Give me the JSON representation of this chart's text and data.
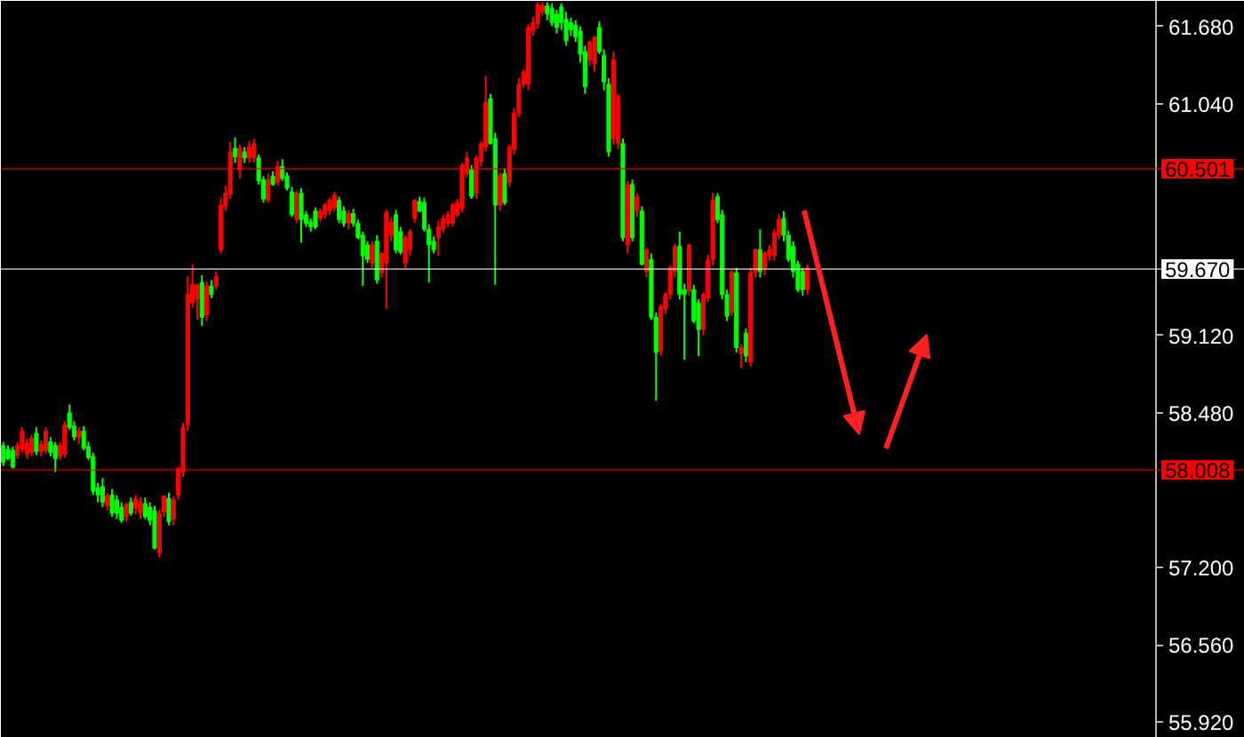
{
  "chart_data": {
    "type": "candlestick",
    "categories": [
      null,
      null,
      null,
      null,
      null,
      null,
      null,
      null,
      null,
      null,
      null,
      null,
      null,
      null,
      null,
      null,
      null,
      null,
      null,
      null,
      null,
      null,
      null,
      null,
      null,
      null,
      null,
      null,
      null,
      null,
      null,
      null,
      null,
      null,
      null,
      null,
      null,
      null,
      null,
      null,
      null,
      null,
      null,
      null,
      null,
      null,
      null,
      null,
      null,
      null,
      null,
      null,
      null,
      null,
      null,
      null,
      null,
      null,
      null,
      null,
      null,
      null,
      null,
      null,
      null,
      null,
      null,
      null,
      null,
      null,
      null,
      null,
      null,
      null,
      null,
      null,
      null,
      null,
      null,
      null,
      null,
      null,
      null,
      null,
      null,
      null,
      null,
      null,
      null,
      null,
      null,
      null,
      null,
      null,
      null,
      null,
      null,
      null,
      null,
      null,
      null,
      null,
      null,
      null,
      null,
      null,
      null,
      null,
      null,
      null,
      null,
      null,
      null,
      null,
      null,
      null,
      null,
      null,
      null,
      null,
      null,
      null,
      null,
      null,
      null,
      null,
      null,
      null,
      null,
      null,
      null,
      null,
      null,
      null,
      null,
      null,
      null,
      null,
      null,
      null,
      null,
      null,
      null,
      null,
      null,
      null,
      null,
      null,
      null,
      null,
      null,
      null,
      null,
      null,
      null,
      null,
      null,
      null,
      null,
      null,
      null,
      null,
      null,
      null,
      null,
      null,
      null,
      null,
      null,
      null,
      null,
      null,
      null,
      null,
      null,
      null,
      null,
      null,
      null,
      null,
      null,
      null,
      null,
      null,
      null,
      null,
      null,
      null,
      null,
      null,
      null,
      null,
      null,
      null,
      null,
      null,
      null,
      null,
      null,
      null,
      null,
      null,
      null,
      null,
      null,
      null,
      null,
      null,
      null,
      null,
      null,
      null,
      null,
      null,
      null,
      null,
      null,
      null,
      null,
      null,
      null,
      null,
      null,
      null,
      null,
      null,
      null,
      null,
      null,
      null,
      null,
      null,
      null,
      null,
      null,
      null,
      null,
      null,
      null,
      null,
      null,
      null,
      null,
      null,
      null,
      null,
      null,
      null,
      null,
      null,
      null,
      null,
      null,
      null,
      null,
      null,
      null,
      null,
      null,
      null,
      null,
      null,
      null
    ],
    "ohlc": [
      [
        58.21,
        58.24,
        58.04,
        58.07
      ],
      [
        58.18,
        58.21,
        58.09,
        58.1
      ],
      [
        58.17,
        58.2,
        58.02,
        58.03
      ],
      [
        58.13,
        58.24,
        58.1,
        58.21
      ],
      [
        58.18,
        58.36,
        58.15,
        58.33
      ],
      [
        58.14,
        58.27,
        58.1,
        58.23
      ],
      [
        58.15,
        58.3,
        58.12,
        58.27
      ],
      [
        58.31,
        58.36,
        58.13,
        58.16
      ],
      [
        58.16,
        58.25,
        58.12,
        58.22
      ],
      [
        58.17,
        58.36,
        58.14,
        58.33
      ],
      [
        58.24,
        58.28,
        58.12,
        58.15
      ],
      [
        58.21,
        58.24,
        57.99,
        58.1
      ],
      [
        58.12,
        58.24,
        58.09,
        58.21
      ],
      [
        58.14,
        58.41,
        58.11,
        58.38
      ],
      [
        58.48,
        58.55,
        58.34,
        58.36
      ],
      [
        58.37,
        58.41,
        58.25,
        58.28
      ],
      [
        58.28,
        58.36,
        58.22,
        58.33
      ],
      [
        58.33,
        58.37,
        58.17,
        58.19
      ],
      [
        58.2,
        58.24,
        58.09,
        58.11
      ],
      [
        58.12,
        58.15,
        57.8,
        57.83
      ],
      [
        57.86,
        57.9,
        57.74,
        57.8
      ],
      [
        57.87,
        57.94,
        57.7,
        57.74
      ],
      [
        57.71,
        57.82,
        57.67,
        57.79
      ],
      [
        57.8,
        57.85,
        57.62,
        57.65
      ],
      [
        57.76,
        57.8,
        57.6,
        57.65
      ],
      [
        57.7,
        57.74,
        57.57,
        57.59
      ],
      [
        57.62,
        57.74,
        57.58,
        57.72
      ],
      [
        57.74,
        57.78,
        57.63,
        57.65
      ],
      [
        57.69,
        57.8,
        57.64,
        57.77
      ],
      [
        57.65,
        57.78,
        57.6,
        57.74
      ],
      [
        57.73,
        57.78,
        57.6,
        57.62
      ],
      [
        57.7,
        57.74,
        57.55,
        57.59
      ],
      [
        57.67,
        57.71,
        57.35,
        57.36
      ],
      [
        57.32,
        57.68,
        57.28,
        57.65
      ],
      [
        57.66,
        57.8,
        57.62,
        57.79
      ],
      [
        57.77,
        57.82,
        57.55,
        57.58
      ],
      [
        57.6,
        57.79,
        57.55,
        57.76
      ],
      [
        57.8,
        58.03,
        57.76,
        58.02
      ],
      [
        57.99,
        58.4,
        57.95,
        58.36
      ],
      [
        58.38,
        59.61,
        58.33,
        59.46
      ],
      [
        59.39,
        59.71,
        59.35,
        59.54
      ],
      [
        59.42,
        59.55,
        59.25,
        59.54
      ],
      [
        59.56,
        59.62,
        59.2,
        59.27
      ],
      [
        59.29,
        59.57,
        59.24,
        59.53
      ],
      [
        59.53,
        59.58,
        59.43,
        59.46
      ],
      [
        59.53,
        59.65,
        59.5,
        59.61
      ],
      [
        59.83,
        60.26,
        59.8,
        60.2
      ],
      [
        60.19,
        60.36,
        60.15,
        60.3
      ],
      [
        60.29,
        60.72,
        60.25,
        60.64
      ],
      [
        60.67,
        60.76,
        60.55,
        60.6
      ],
      [
        60.49,
        60.7,
        60.42,
        60.67
      ],
      [
        60.64,
        60.68,
        60.55,
        60.59
      ],
      [
        60.59,
        60.73,
        60.55,
        60.68
      ],
      [
        60.59,
        60.75,
        60.55,
        60.71
      ],
      [
        60.59,
        60.62,
        60.37,
        60.4
      ],
      [
        60.41,
        60.44,
        60.22,
        60.25
      ],
      [
        60.24,
        60.46,
        60.22,
        60.41
      ],
      [
        60.44,
        60.48,
        60.36,
        60.37
      ],
      [
        60.39,
        60.57,
        60.36,
        60.52
      ],
      [
        60.52,
        60.58,
        60.4,
        60.42
      ],
      [
        60.44,
        60.47,
        60.32,
        60.34
      ],
      [
        60.31,
        60.35,
        60.1,
        60.12
      ],
      [
        60.08,
        60.32,
        60.05,
        60.3
      ],
      [
        60.3,
        60.34,
        59.89,
        60.08
      ],
      [
        60.12,
        60.15,
        60.02,
        60.05
      ],
      [
        60.06,
        60.09,
        59.98,
        60.02
      ],
      [
        60.15,
        60.18,
        60.0,
        60.02
      ],
      [
        60.09,
        60.17,
        60.06,
        60.15
      ],
      [
        60.12,
        60.22,
        60.09,
        60.2
      ],
      [
        60.15,
        60.26,
        60.12,
        60.24
      ],
      [
        60.18,
        60.31,
        60.15,
        60.28
      ],
      [
        60.24,
        60.27,
        60.05,
        60.08
      ],
      [
        60.15,
        60.19,
        60.02,
        60.05
      ],
      [
        60.05,
        60.16,
        60.0,
        60.13
      ],
      [
        60.13,
        60.17,
        60.02,
        60.05
      ],
      [
        60.05,
        60.08,
        59.92,
        59.93
      ],
      [
        59.95,
        59.98,
        59.53,
        59.78
      ],
      [
        59.87,
        59.9,
        59.72,
        59.75
      ],
      [
        59.72,
        59.9,
        59.68,
        59.87
      ],
      [
        59.9,
        59.95,
        59.55,
        59.58
      ],
      [
        59.64,
        59.81,
        59.6,
        59.8
      ],
      [
        59.72,
        60.16,
        59.34,
        60.14
      ],
      [
        59.95,
        60.1,
        59.9,
        60.06
      ],
      [
        60.12,
        60.16,
        59.8,
        59.83
      ],
      [
        59.98,
        60.02,
        59.79,
        59.81
      ],
      [
        59.72,
        59.95,
        59.68,
        59.93
      ],
      [
        59.83,
        60.0,
        59.78,
        59.98
      ],
      [
        60.09,
        60.25,
        60.05,
        60.24
      ],
      [
        60.23,
        60.27,
        60.14,
        60.15
      ],
      [
        60.22,
        60.26,
        59.98,
        60.0
      ],
      [
        60.0,
        60.04,
        59.56,
        59.87
      ],
      [
        59.9,
        59.94,
        59.8,
        59.83
      ],
      [
        59.93,
        60.07,
        59.78,
        60.02
      ],
      [
        60.0,
        60.12,
        59.97,
        60.09
      ],
      [
        60.05,
        60.15,
        60.02,
        60.12
      ],
      [
        60.05,
        60.22,
        60.02,
        60.2
      ],
      [
        60.12,
        60.25,
        60.1,
        60.22
      ],
      [
        60.17,
        60.55,
        60.14,
        60.53
      ],
      [
        60.46,
        60.64,
        60.43,
        60.59
      ],
      [
        60.49,
        60.53,
        60.25,
        60.27
      ],
      [
        60.3,
        60.61,
        60.25,
        60.59
      ],
      [
        60.56,
        60.73,
        60.52,
        60.71
      ],
      [
        60.68,
        61.27,
        60.64,
        61.05
      ],
      [
        61.08,
        61.12,
        60.7,
        60.71
      ],
      [
        60.75,
        60.8,
        59.54,
        60.2
      ],
      [
        60.2,
        60.47,
        60.15,
        60.45
      ],
      [
        60.46,
        60.5,
        60.2,
        60.22
      ],
      [
        60.39,
        60.7,
        60.35,
        60.68
      ],
      [
        60.66,
        61.0,
        60.62,
        60.96
      ],
      [
        60.96,
        61.25,
        60.93,
        61.2
      ],
      [
        61.2,
        61.32,
        61.17,
        61.3
      ],
      [
        61.2,
        61.7,
        61.15,
        61.67
      ],
      [
        61.64,
        61.76,
        61.6,
        61.71
      ],
      [
        61.7,
        61.88,
        61.66,
        61.86
      ],
      [
        61.8,
        61.88,
        61.77,
        61.85
      ],
      [
        61.85,
        61.88,
        61.73,
        61.78
      ],
      [
        61.83,
        61.87,
        61.68,
        61.71
      ],
      [
        61.78,
        61.82,
        61.62,
        61.67
      ],
      [
        61.84,
        61.87,
        61.65,
        61.71
      ],
      [
        61.74,
        61.8,
        61.52,
        61.56
      ],
      [
        61.71,
        61.75,
        61.6,
        61.65
      ],
      [
        61.69,
        61.73,
        61.55,
        61.59
      ],
      [
        61.64,
        61.68,
        61.38,
        61.45
      ],
      [
        61.47,
        61.52,
        61.12,
        61.18
      ],
      [
        61.4,
        61.56,
        61.35,
        61.55
      ],
      [
        61.37,
        61.6,
        61.3,
        61.59
      ],
      [
        61.67,
        61.72,
        61.45,
        61.47
      ],
      [
        61.44,
        61.49,
        61.15,
        61.22
      ],
      [
        61.2,
        61.25,
        60.6,
        60.64
      ],
      [
        60.75,
        61.47,
        60.7,
        61.4
      ],
      [
        60.71,
        61.12,
        60.66,
        61.1
      ],
      [
        60.71,
        60.75,
        59.9,
        59.93
      ],
      [
        59.87,
        60.4,
        59.8,
        60.37
      ],
      [
        60.37,
        60.41,
        59.9,
        59.93
      ],
      [
        60.15,
        60.3,
        60.1,
        60.27
      ],
      [
        60.15,
        60.19,
        59.7,
        59.71
      ],
      [
        59.65,
        59.85,
        59.6,
        59.83
      ],
      [
        59.75,
        59.8,
        59.25,
        59.27
      ],
      [
        59.27,
        59.31,
        58.58,
        58.98
      ],
      [
        58.99,
        59.38,
        58.95,
        59.36
      ],
      [
        59.34,
        59.48,
        59.3,
        59.46
      ],
      [
        59.46,
        59.7,
        59.42,
        59.68
      ],
      [
        59.65,
        59.88,
        59.6,
        59.86
      ],
      [
        59.86,
        59.98,
        59.42,
        59.46
      ],
      [
        59.5,
        59.55,
        58.92,
        59.46
      ],
      [
        59.49,
        59.88,
        59.45,
        59.87
      ],
      [
        59.5,
        59.54,
        59.22,
        59.24
      ],
      [
        59.39,
        59.42,
        58.95,
        59.17
      ],
      [
        59.17,
        59.48,
        59.12,
        59.46
      ],
      [
        59.43,
        59.79,
        59.4,
        59.75
      ],
      [
        59.75,
        60.3,
        59.7,
        60.24
      ],
      [
        60.27,
        60.3,
        60.05,
        60.08
      ],
      [
        60.12,
        60.16,
        59.42,
        59.46
      ],
      [
        59.46,
        59.5,
        59.24,
        59.28
      ],
      [
        59.31,
        59.66,
        59.28,
        59.65
      ],
      [
        59.64,
        59.68,
        58.98,
        59.02
      ],
      [
        58.97,
        59.05,
        58.85,
        59.02
      ],
      [
        59.14,
        59.18,
        58.9,
        58.95
      ],
      [
        58.9,
        59.68,
        58.86,
        59.64
      ],
      [
        59.64,
        59.84,
        59.6,
        59.83
      ],
      [
        59.83,
        60.0,
        59.6,
        59.65
      ],
      [
        59.68,
        59.82,
        59.62,
        59.8
      ],
      [
        59.78,
        59.87,
        59.74,
        59.83
      ],
      [
        59.78,
        60.0,
        59.74,
        59.97
      ],
      [
        59.95,
        60.12,
        59.92,
        60.08
      ],
      [
        60.09,
        60.15,
        59.9,
        59.95
      ],
      [
        59.95,
        59.99,
        59.73,
        59.75
      ],
      [
        59.86,
        59.9,
        59.6,
        59.65
      ],
      [
        59.71,
        59.74,
        59.48,
        59.5
      ],
      [
        59.65,
        59.68,
        59.45,
        59.5
      ],
      [
        59.5,
        59.71,
        59.46,
        59.68
      ],
      null,
      null,
      null,
      null,
      null,
      null,
      null,
      null,
      null,
      null,
      null,
      null,
      null,
      null,
      null,
      null,
      null,
      null,
      null,
      null,
      null,
      null,
      null,
      null,
      null,
      null,
      null,
      null,
      null,
      null,
      null,
      null,
      null,
      null,
      null,
      null,
      null,
      null,
      null,
      null,
      null,
      null,
      null,
      null,
      null,
      null,
      null,
      null,
      null,
      null,
      null,
      null,
      null,
      null,
      null,
      null,
      null,
      null,
      null,
      null,
      null,
      null,
      null,
      null,
      null,
      null,
      null,
      null,
      null,
      null,
      null,
      null,
      null,
      null,
      null,
      null,
      null,
      null,
      null,
      null,
      null,
      null,
      null,
      null,
      null,
      null,
      null,
      null,
      null,
      null,
      null,
      null
    ],
    "colors": [
      "#00ff00",
      "#00ff00",
      "#00ff00",
      "#ff0000",
      "#ff0000",
      "#ff0000",
      "#ff0000",
      "#00ff00",
      "#ff0000",
      "#ff0000",
      "#00ff00",
      "#00ff00",
      "#ff0000",
      "#ff0000",
      "#00ff00",
      "#00ff00",
      "#ff0000",
      "#00ff00",
      "#00ff00",
      "#00ff00",
      "#00ff00",
      "#00ff00",
      "#ff0000",
      "#00ff00",
      "#00ff00",
      "#00ff00",
      "#ff0000",
      "#00ff00",
      "#ff0000",
      "#ff0000",
      "#00ff00",
      "#00ff00",
      "#00ff00",
      "#ff0000",
      "#ff0000",
      "#00ff00",
      "#ff0000",
      "#ff0000",
      "#ff0000",
      "#ff0000",
      "#ff0000",
      "#ff0000",
      "#00ff00",
      "#ff0000",
      "#00ff00",
      "#ff0000",
      "#ff0000",
      "#ff0000",
      "#ff0000",
      "#00ff00",
      "#ff0000",
      "#00ff00",
      "#ff0000",
      "#ff0000",
      "#00ff00",
      "#00ff00",
      "#ff0000",
      "#00ff00",
      "#ff0000",
      "#00ff00",
      "#00ff00",
      "#00ff00",
      "#ff0000",
      "#00ff00",
      "#00ff00",
      "#00ff00",
      "#00ff00",
      "#ff0000",
      "#ff0000",
      "#ff0000",
      "#ff0000",
      "#00ff00",
      "#00ff00",
      "#ff0000",
      "#00ff00",
      "#00ff00",
      "#00ff00",
      "#00ff00",
      "#ff0000",
      "#00ff00",
      "#ff0000",
      "#ff0000",
      "#ff0000",
      "#00ff00",
      "#00ff00",
      "#ff0000",
      "#ff0000",
      "#ff0000",
      "#00ff00",
      "#00ff00",
      "#00ff00",
      "#00ff00",
      "#ff0000",
      "#ff0000",
      "#ff0000",
      "#ff0000",
      "#ff0000",
      "#ff0000",
      "#ff0000",
      "#00ff00",
      "#ff0000",
      "#ff0000",
      "#ff0000",
      "#00ff00",
      "#00ff00",
      "#ff0000",
      "#00ff00",
      "#ff0000",
      "#ff0000",
      "#ff0000",
      "#ff0000",
      "#ff0000",
      "#ff0000",
      "#ff0000",
      "#ff0000",
      "#00ff00",
      "#00ff00",
      "#00ff00",
      "#00ff00",
      "#00ff00",
      "#00ff00",
      "#00ff00",
      "#00ff00",
      "#00ff00",
      "#ff0000",
      "#ff0000",
      "#00ff00",
      "#00ff00",
      "#00ff00",
      "#ff0000",
      "#ff0000",
      "#00ff00",
      "#ff0000",
      "#00ff00",
      "#ff0000",
      "#00ff00",
      "#ff0000",
      "#00ff00",
      "#00ff00",
      "#ff0000",
      "#ff0000",
      "#ff0000",
      "#ff0000",
      "#00ff00",
      "#00ff00",
      "#ff0000",
      "#00ff00",
      "#00ff00",
      "#ff0000",
      "#ff0000",
      "#ff0000",
      "#00ff00",
      "#00ff00",
      "#00ff00",
      "#ff0000",
      "#00ff00",
      "#ff0000",
      "#00ff00",
      "#ff0000",
      "#ff0000",
      "#00ff00",
      "#ff0000",
      "#ff0000",
      "#ff0000",
      "#ff0000",
      "#00ff00",
      "#00ff00",
      "#00ff00",
      "#00ff00",
      "#00ff00",
      "#ff0000",
      null,
      null,
      null,
      null,
      null,
      null,
      null,
      null,
      null,
      null,
      null,
      null,
      null,
      null,
      null,
      null,
      null,
      null,
      null,
      null,
      null,
      null,
      null,
      null,
      null,
      null,
      null,
      null,
      null,
      null,
      null,
      null,
      null,
      null,
      null,
      null,
      null,
      null,
      null,
      null,
      null,
      null,
      null,
      null,
      null,
      null,
      null,
      null,
      null,
      null,
      null,
      null,
      null,
      null,
      null,
      null,
      null,
      null,
      null,
      null,
      null,
      null,
      null,
      null,
      null,
      null,
      null,
      null,
      null,
      null,
      null,
      null,
      null,
      null,
      null,
      null,
      null,
      null,
      null,
      null,
      null,
      null,
      null,
      null,
      null,
      null,
      null,
      null,
      null,
      null,
      null,
      null
    ],
    "ylim": [
      55.79,
      61.89
    ],
    "yticks": [
      {
        "value": 61.68,
        "label": "61.680"
      },
      {
        "value": 61.04,
        "label": "61.040"
      },
      {
        "value": 59.12,
        "label": "59.120"
      },
      {
        "value": 58.48,
        "label": "58.480"
      },
      {
        "value": 57.2,
        "label": "57.200"
      },
      {
        "value": 56.56,
        "label": "56.560"
      },
      {
        "value": 55.92,
        "label": "55.920"
      }
    ],
    "ref_lines": [
      {
        "axis": "y",
        "value": 60.501,
        "label": "60.501",
        "color": "#ff0000"
      },
      {
        "axis": "y",
        "value": 59.67,
        "label": "59.670",
        "color": "#ffffff"
      },
      {
        "axis": "y",
        "value": 58.008,
        "label": "58.008",
        "color": "#ff0000"
      }
    ],
    "tick_labels": "y"
  }
}
